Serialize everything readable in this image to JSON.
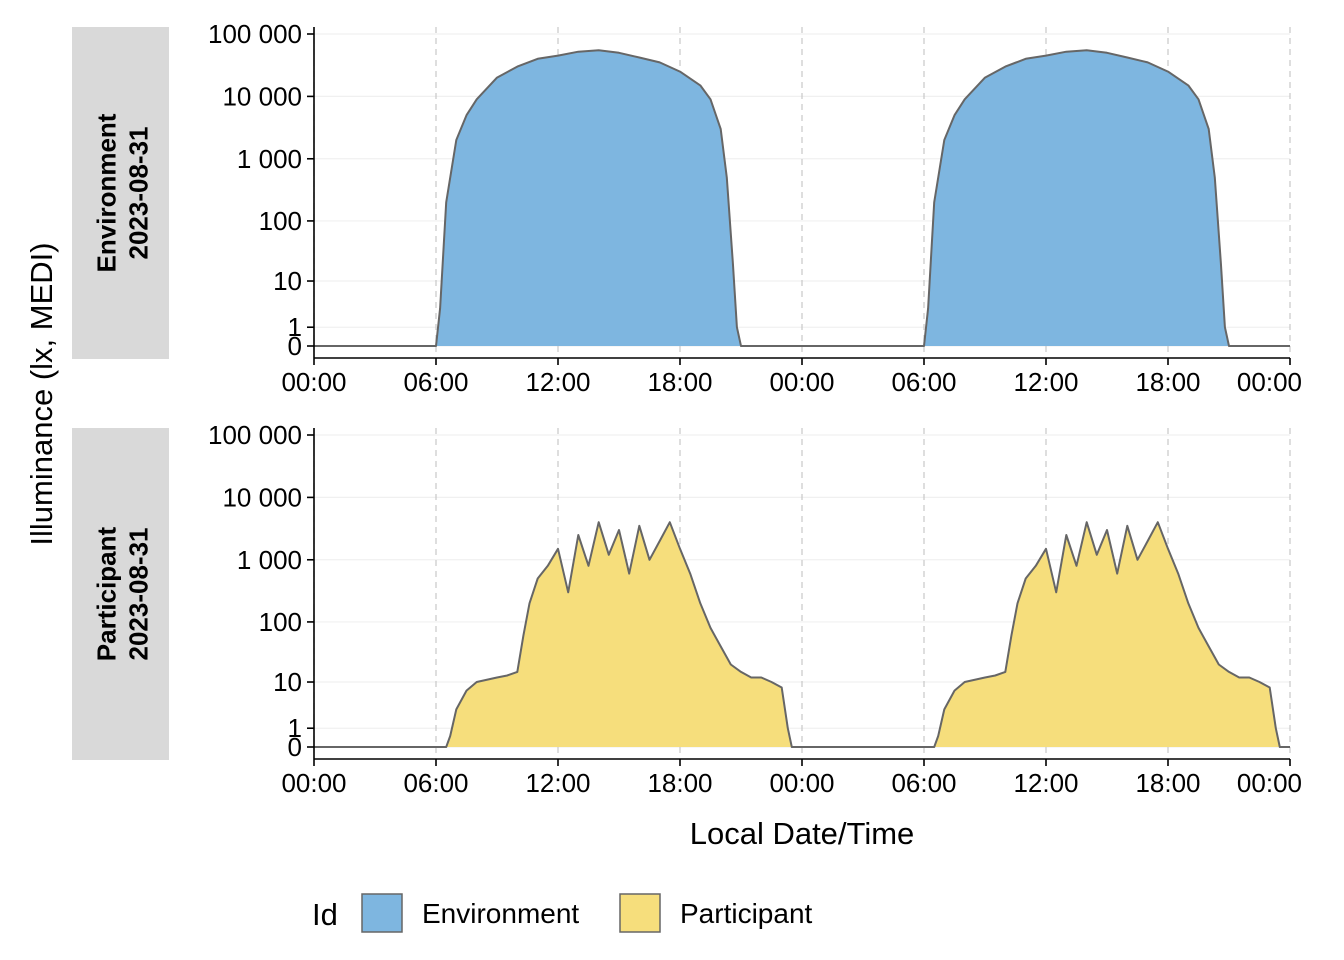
{
  "chart_data": {
    "type": "area",
    "xlabel": "Local Date/Time",
    "ylabel": "Illuminance (lx, MEDI)",
    "y_scale": "symlog",
    "y_ticks": [
      0,
      1,
      10,
      100,
      1000,
      10000,
      100000
    ],
    "y_tick_labels": [
      "0",
      "1",
      "10",
      "100",
      "1 000",
      "10 000",
      "100 000"
    ],
    "x_range_hours": [
      0,
      48
    ],
    "x_tick_labels": [
      "00:00",
      "06:00",
      "12:00",
      "18:00",
      "00:00",
      "06:00",
      "12:00",
      "18:00",
      "00:00"
    ],
    "grid": true,
    "legend": {
      "title": "Id",
      "placement": "bottom",
      "entries": [
        {
          "label": "Environment",
          "color": "#7EB6E0"
        },
        {
          "label": "Participant",
          "color": "#F6DE7C"
        }
      ]
    },
    "panels": [
      {
        "id": "Environment",
        "strip": [
          "Environment",
          "2023-08-31"
        ],
        "fill": "#7EB6E0",
        "line_color": "#666666",
        "series": {
          "name": "Environment",
          "x_hours": [
            0,
            6,
            6.2,
            6.5,
            7,
            7.5,
            8,
            9,
            10,
            11,
            12,
            13,
            14,
            15,
            16,
            17,
            18,
            19,
            19.5,
            20,
            20.3,
            20.6,
            20.8,
            21,
            24,
            30,
            30.2,
            30.5,
            31,
            31.5,
            32,
            33,
            34,
            35,
            36,
            37,
            38,
            39,
            40,
            41,
            42,
            43,
            43.5,
            44,
            44.3,
            44.6,
            44.8,
            45,
            48
          ],
          "y": [
            0,
            0,
            3,
            200,
            2000,
            5000,
            9000,
            20000,
            30000,
            40000,
            45000,
            52000,
            55000,
            50000,
            42000,
            35000,
            25000,
            15000,
            9000,
            3000,
            500,
            20,
            1,
            0,
            0,
            0,
            3,
            200,
            2000,
            5000,
            9000,
            20000,
            30000,
            40000,
            45000,
            52000,
            55000,
            50000,
            42000,
            35000,
            25000,
            15000,
            9000,
            3000,
            500,
            20,
            1,
            0,
            0
          ]
        }
      },
      {
        "id": "Participant",
        "strip": [
          "Participant",
          "2023-08-31"
        ],
        "fill": "#F6DE7C",
        "line_color": "#666666",
        "series": {
          "name": "Participant",
          "x_hours": [
            0,
            6.5,
            6.7,
            7,
            7.5,
            8,
            9,
            9.5,
            10,
            10.3,
            10.6,
            11,
            11.5,
            12,
            12.5,
            13,
            13.5,
            14,
            14.5,
            15,
            15.5,
            16,
            16.5,
            17,
            17.5,
            18,
            18.5,
            19,
            19.5,
            20,
            20.5,
            21,
            21.5,
            22,
            22.5,
            23,
            23.3,
            23.5,
            24,
            30.5,
            30.7,
            31,
            31.5,
            32,
            33,
            33.5,
            34,
            34.3,
            34.6,
            35,
            35.5,
            36,
            36.5,
            37,
            37.5,
            38,
            38.5,
            39,
            39.5,
            40,
            40.5,
            41,
            41.5,
            42,
            42.5,
            43,
            43.5,
            44,
            44.5,
            45,
            45.5,
            46,
            46.5,
            47,
            47.3,
            47.5,
            48
          ],
          "y": [
            0,
            0,
            0.5,
            3,
            7,
            10,
            12,
            13,
            15,
            60,
            200,
            500,
            800,
            1500,
            300,
            2500,
            800,
            4000,
            1200,
            3000,
            600,
            3500,
            1000,
            2000,
            4000,
            1500,
            600,
            200,
            80,
            40,
            20,
            15,
            12,
            12,
            10,
            8,
            1,
            0,
            0,
            0,
            0.5,
            3,
            7,
            10,
            12,
            13,
            15,
            60,
            200,
            500,
            800,
            1500,
            300,
            2500,
            800,
            4000,
            1200,
            3000,
            600,
            3500,
            1000,
            2000,
            4000,
            1500,
            600,
            200,
            80,
            40,
            20,
            15,
            12,
            12,
            10,
            8,
            1,
            0,
            0
          ]
        }
      }
    ]
  }
}
